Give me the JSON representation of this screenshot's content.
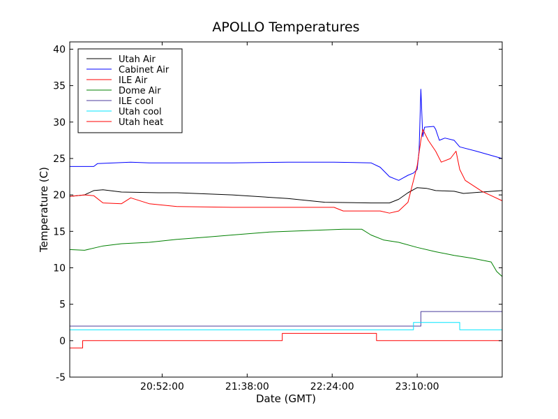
{
  "chart_data": {
    "type": "line",
    "title": "APOLLO Temperatures",
    "xlabel": "Date (GMT)",
    "ylabel": "Temperature (C)",
    "xlim": [
      "20:02:00",
      "23:56:00"
    ],
    "ylim": [
      -5,
      41
    ],
    "x_ticks": [
      "20:52:00",
      "21:38:00",
      "22:24:00",
      "23:10:00"
    ],
    "y_ticks": [
      -5,
      0,
      5,
      10,
      15,
      20,
      25,
      30,
      35,
      40
    ],
    "legend_position": "top-left",
    "series": [
      {
        "name": "Utah Air",
        "color": "#000000",
        "points": [
          [
            "20:02:00",
            19.8
          ],
          [
            "20:10:00",
            20.0
          ],
          [
            "20:15:00",
            20.6
          ],
          [
            "20:20:00",
            20.7
          ],
          [
            "20:30:00",
            20.4
          ],
          [
            "20:50:00",
            20.3
          ],
          [
            "21:00:00",
            20.3
          ],
          [
            "21:30:00",
            20.0
          ],
          [
            "22:00:00",
            19.5
          ],
          [
            "22:20:00",
            19.0
          ],
          [
            "22:45:00",
            18.9
          ],
          [
            "22:55:00",
            18.9
          ],
          [
            "23:00:00",
            19.4
          ],
          [
            "23:05:00",
            20.3
          ],
          [
            "23:10:00",
            21.0
          ],
          [
            "23:15:00",
            20.9
          ],
          [
            "23:20:00",
            20.6
          ],
          [
            "23:30:00",
            20.5
          ],
          [
            "23:35:00",
            20.2
          ],
          [
            "23:45:00",
            20.4
          ],
          [
            "23:56:00",
            20.6
          ]
        ]
      },
      {
        "name": "Cabinet Air",
        "color": "#0000ff",
        "points": [
          [
            "20:02:00",
            23.9
          ],
          [
            "20:15:00",
            23.9
          ],
          [
            "20:17:00",
            24.3
          ],
          [
            "20:35:00",
            24.5
          ],
          [
            "20:45:00",
            24.4
          ],
          [
            "21:30:00",
            24.4
          ],
          [
            "22:00:00",
            24.5
          ],
          [
            "22:25:00",
            24.5
          ],
          [
            "22:45:00",
            24.4
          ],
          [
            "22:50:00",
            23.8
          ],
          [
            "22:55:00",
            22.5
          ],
          [
            "23:00:00",
            22.0
          ],
          [
            "23:05:00",
            22.7
          ],
          [
            "23:08:00",
            23.0
          ],
          [
            "23:10:00",
            23.5
          ],
          [
            "23:11:00",
            26.0
          ],
          [
            "23:12:00",
            34.5
          ],
          [
            "23:13:00",
            28.0
          ],
          [
            "23:14:00",
            29.3
          ],
          [
            "23:19:00",
            29.4
          ],
          [
            "23:20:00",
            29.0
          ],
          [
            "23:22:00",
            27.5
          ],
          [
            "23:25:00",
            27.8
          ],
          [
            "23:30:00",
            27.5
          ],
          [
            "23:33:00",
            26.6
          ],
          [
            "23:42:00",
            26.0
          ],
          [
            "23:56:00",
            25.0
          ]
        ]
      },
      {
        "name": "ILE Air",
        "color": "#ff0000",
        "points": [
          [
            "20:02:00",
            19.8
          ],
          [
            "20:10:00",
            20.0
          ],
          [
            "20:15:00",
            19.9
          ],
          [
            "20:20:00",
            18.9
          ],
          [
            "20:30:00",
            18.8
          ],
          [
            "20:35:00",
            19.6
          ],
          [
            "20:45:00",
            18.8
          ],
          [
            "21:00:00",
            18.4
          ],
          [
            "21:30:00",
            18.3
          ],
          [
            "22:00:00",
            18.3
          ],
          [
            "22:25:00",
            18.3
          ],
          [
            "22:30:00",
            17.8
          ],
          [
            "22:50:00",
            17.8
          ],
          [
            "22:55:00",
            17.5
          ],
          [
            "23:00:00",
            17.8
          ],
          [
            "23:05:00",
            19.0
          ],
          [
            "23:10:00",
            24.0
          ],
          [
            "23:12:00",
            27.5
          ],
          [
            "23:13:00",
            29.0
          ],
          [
            "23:16:00",
            27.5
          ],
          [
            "23:20:00",
            26.0
          ],
          [
            "23:23:00",
            24.5
          ],
          [
            "23:28:00",
            25.0
          ],
          [
            "23:31:00",
            26.0
          ],
          [
            "23:33:00",
            23.5
          ],
          [
            "23:36:00",
            22.0
          ],
          [
            "23:45:00",
            20.5
          ],
          [
            "23:56:00",
            19.2
          ]
        ]
      },
      {
        "name": "Dome Air",
        "color": "#008000",
        "points": [
          [
            "20:02:00",
            12.5
          ],
          [
            "20:10:00",
            12.4
          ],
          [
            "20:20:00",
            13.0
          ],
          [
            "20:30:00",
            13.3
          ],
          [
            "20:45:00",
            13.5
          ],
          [
            "21:00:00",
            13.9
          ],
          [
            "21:15:00",
            14.2
          ],
          [
            "21:30:00",
            14.5
          ],
          [
            "21:50:00",
            14.9
          ],
          [
            "22:10:00",
            15.1
          ],
          [
            "22:30:00",
            15.3
          ],
          [
            "22:40:00",
            15.3
          ],
          [
            "22:45:00",
            14.5
          ],
          [
            "22:52:00",
            13.8
          ],
          [
            "23:00:00",
            13.5
          ],
          [
            "23:10:00",
            12.8
          ],
          [
            "23:20:00",
            12.2
          ],
          [
            "23:30:00",
            11.7
          ],
          [
            "23:40:00",
            11.3
          ],
          [
            "23:50:00",
            10.8
          ],
          [
            "23:53:00",
            9.5
          ],
          [
            "23:56:00",
            8.8
          ]
        ]
      },
      {
        "name": "ILE cool",
        "color": "#4b3c9c",
        "points": [
          [
            "20:02:00",
            2.0
          ],
          [
            "23:12:00",
            2.0
          ],
          [
            "23:12:00",
            4.0
          ],
          [
            "23:56:00",
            4.0
          ]
        ]
      },
      {
        "name": "Utah cool",
        "color": "#00e5ff",
        "points": [
          [
            "20:02:00",
            1.5
          ],
          [
            "23:08:00",
            1.5
          ],
          [
            "23:08:00",
            2.5
          ],
          [
            "23:33:00",
            2.5
          ],
          [
            "23:33:00",
            1.5
          ],
          [
            "23:56:00",
            1.5
          ]
        ]
      },
      {
        "name": "Utah heat",
        "color": "#ff0000",
        "points": [
          [
            "20:02:00",
            -1.0
          ],
          [
            "20:09:00",
            -1.0
          ],
          [
            "20:09:00",
            0.0
          ],
          [
            "21:57:00",
            0.0
          ],
          [
            "21:57:00",
            1.0
          ],
          [
            "22:48:00",
            1.0
          ],
          [
            "22:48:00",
            0.0
          ],
          [
            "23:56:00",
            0.0
          ]
        ]
      }
    ]
  }
}
